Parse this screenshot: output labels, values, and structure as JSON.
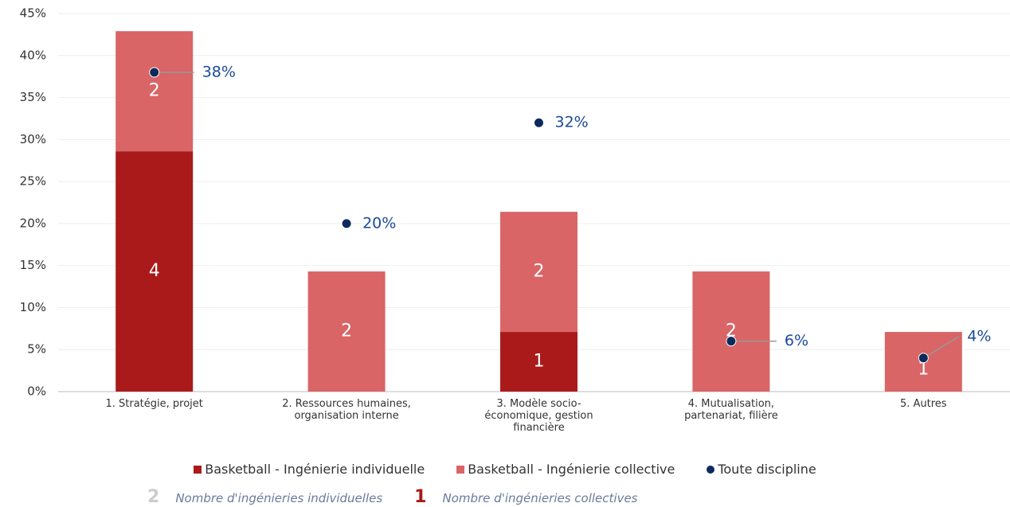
{
  "chart_data": {
    "type": "bar",
    "stacked": true,
    "categories": [
      "1. Stratégie, projet",
      "2. Ressources humaines, organisation interne",
      "3. Modèle socio-économique, gestion financière",
      "4. Mutualisation, partenariat, filière",
      "5. Autres"
    ],
    "series": [
      {
        "name": "Basketball - Ingénierie individuelle",
        "color": "#ab1a1a",
        "values": [
          28.6,
          0,
          7.1,
          0,
          0
        ],
        "counts": [
          4,
          null,
          1,
          null,
          null
        ]
      },
      {
        "name": "Basketball - Ingénierie collective",
        "color": "#d96566",
        "values": [
          14.3,
          14.3,
          14.3,
          14.3,
          7.1
        ],
        "counts": [
          2,
          2,
          2,
          2,
          1
        ]
      },
      {
        "name": "Toute discipline",
        "type": "scatter",
        "color": "#0d2a5c",
        "values": [
          38,
          20,
          32,
          6,
          4
        ],
        "value_labels": [
          "38%",
          "20%",
          "32%",
          "6%",
          "4%"
        ]
      }
    ],
    "ylim": [
      0,
      45
    ],
    "yticks": [
      {
        "value": 0,
        "label": "0%"
      },
      {
        "value": 5,
        "label": "5%"
      },
      {
        "value": 10,
        "label": "10%"
      },
      {
        "value": 15,
        "label": "15%"
      },
      {
        "value": 20,
        "label": "20%"
      },
      {
        "value": 25,
        "label": "25%"
      },
      {
        "value": 30,
        "label": "30%"
      },
      {
        "value": 35,
        "label": "35%"
      },
      {
        "value": 40,
        "label": "40%"
      },
      {
        "value": 45,
        "label": "45%"
      }
    ],
    "grid": true,
    "notes": [
      {
        "symbol": "2",
        "color": "#cccccc",
        "text": "Nombre d'ingénieries individuelles"
      },
      {
        "symbol": "1",
        "color": "#ab1a1a",
        "text": "Nombre d'ingénieries collectives"
      }
    ]
  }
}
